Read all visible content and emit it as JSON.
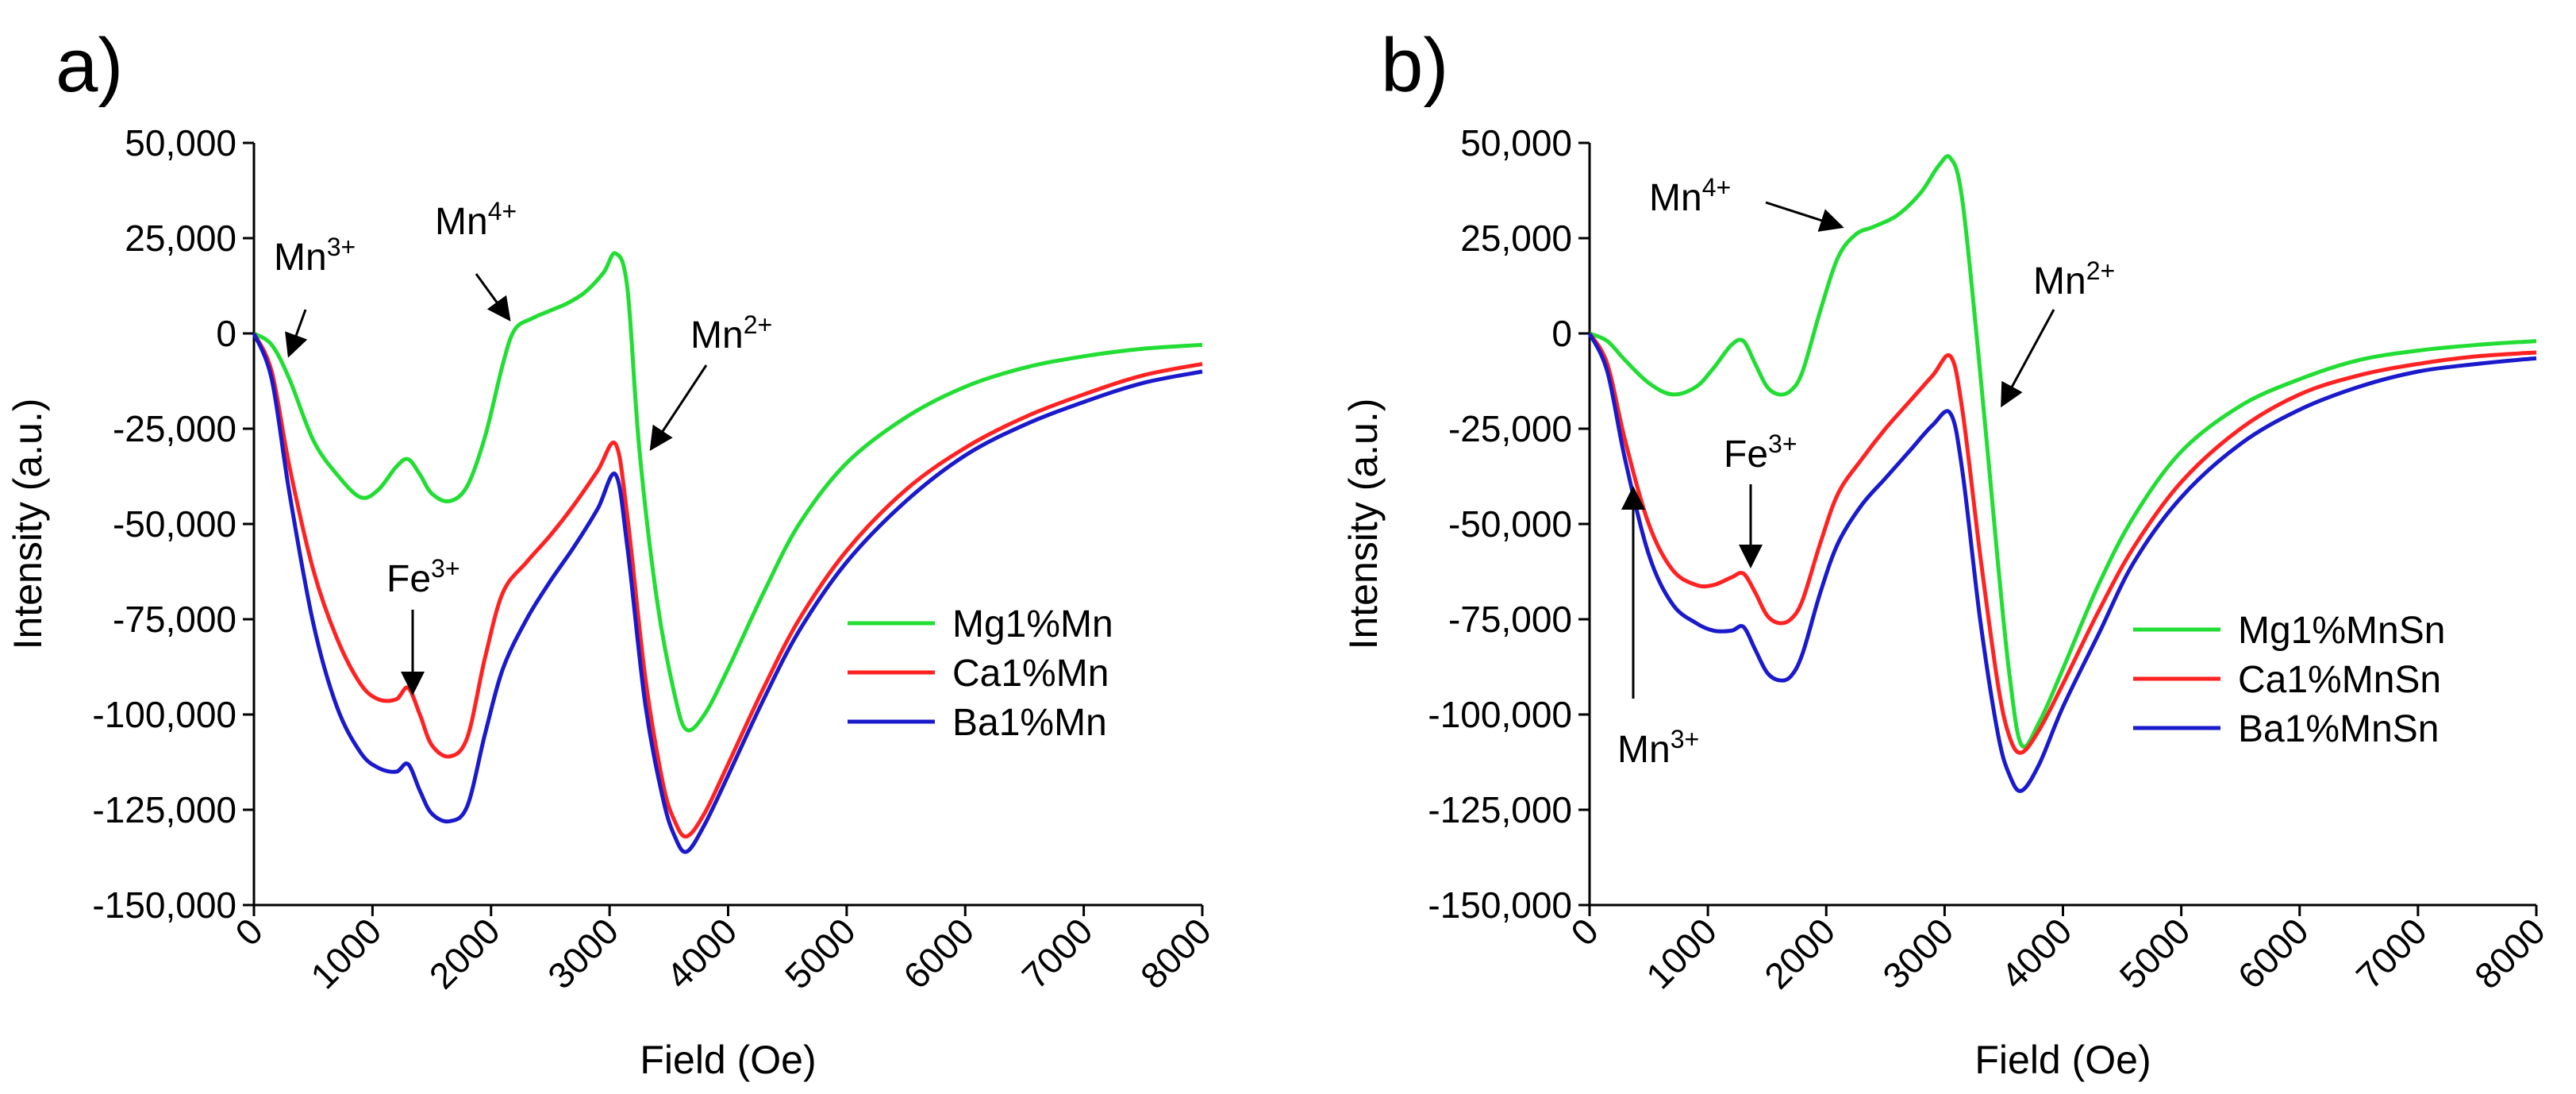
{
  "chart_data": [
    {
      "type": "line",
      "panel_label": "a)",
      "xlabel": "Field (Oe)",
      "ylabel": "Intensity (a.u.)",
      "xlim": [
        0,
        8000
      ],
      "ylim": [
        -150000,
        50000
      ],
      "xticks": [
        "0",
        "1000",
        "2000",
        "3000",
        "4000",
        "5000",
        "6000",
        "7000",
        "8000"
      ],
      "xtick_values": [
        0,
        1000,
        2000,
        3000,
        4000,
        5000,
        6000,
        7000,
        8000
      ],
      "yticks": [
        "50,000",
        "25,000",
        "0",
        "-25,000",
        "-50,000",
        "-75,000",
        "-100,000",
        "-125,000",
        "-150,000"
      ],
      "ytick_values": [
        50000,
        25000,
        0,
        -25000,
        -50000,
        -75000,
        -100000,
        -125000,
        -150000
      ],
      "legend_position": "center-right",
      "series": [
        {
          "name": "Mg1%Mn",
          "color": "#22dd33",
          "x": [
            0,
            150,
            300,
            500,
            700,
            900,
            1050,
            1200,
            1300,
            1400,
            1500,
            1650,
            1800,
            1950,
            2100,
            2200,
            2350,
            2500,
            2650,
            2800,
            2950,
            3050,
            3150,
            3250,
            3400,
            3550,
            3650,
            3800,
            4000,
            4300,
            4600,
            5000,
            5500,
            6000,
            6500,
            7000,
            7500,
            8000
          ],
          "y": [
            0,
            -3000,
            -12000,
            -28000,
            -37000,
            -43000,
            -41000,
            -35000,
            -33000,
            -37000,
            -42000,
            -44000,
            -40000,
            -27000,
            -8000,
            1000,
            4000,
            6000,
            8000,
            11000,
            16000,
            21000,
            12000,
            -30000,
            -70000,
            -95000,
            -104000,
            -100000,
            -88000,
            -68000,
            -50000,
            -34000,
            -22000,
            -14000,
            -9000,
            -6000,
            -4000,
            -3000
          ]
        },
        {
          "name": "Ca1%Mn",
          "color": "#ff2222",
          "x": [
            0,
            150,
            300,
            500,
            700,
            900,
            1050,
            1200,
            1300,
            1400,
            1500,
            1650,
            1800,
            1950,
            2100,
            2300,
            2500,
            2700,
            2900,
            3050,
            3150,
            3300,
            3450,
            3550,
            3650,
            3800,
            4000,
            4300,
            4600,
            5000,
            5500,
            6000,
            6500,
            7000,
            7500,
            8000
          ],
          "y": [
            0,
            -10000,
            -35000,
            -62000,
            -80000,
            -92000,
            -96000,
            -96000,
            -93000,
            -100000,
            -108000,
            -111000,
            -106000,
            -85000,
            -68000,
            -60000,
            -53000,
            -45000,
            -36000,
            -29000,
            -48000,
            -90000,
            -118000,
            -128000,
            -132000,
            -126000,
            -113000,
            -93000,
            -75000,
            -57000,
            -41000,
            -30000,
            -22000,
            -16000,
            -11000,
            -8000
          ]
        },
        {
          "name": "Ba1%Mn",
          "color": "#1a1acc",
          "x": [
            0,
            150,
            300,
            500,
            700,
            900,
            1050,
            1200,
            1300,
            1400,
            1500,
            1650,
            1800,
            1950,
            2100,
            2300,
            2500,
            2700,
            2900,
            3050,
            3150,
            3300,
            3450,
            3550,
            3650,
            3800,
            4000,
            4300,
            4600,
            5000,
            5500,
            6000,
            6500,
            7000,
            7500,
            8000
          ],
          "y": [
            0,
            -12000,
            -42000,
            -76000,
            -98000,
            -110000,
            -114000,
            -115000,
            -113000,
            -120000,
            -126000,
            -128000,
            -124000,
            -105000,
            -88000,
            -75000,
            -65000,
            -56000,
            -46000,
            -37000,
            -56000,
            -97000,
            -122000,
            -132000,
            -136000,
            -129000,
            -116000,
            -96000,
            -78000,
            -60000,
            -44000,
            -32000,
            -24000,
            -18000,
            -13000,
            -10000
          ]
        }
      ],
      "annotations": [
        {
          "base": "Mn",
          "sup": "3+"
        },
        {
          "base": "Mn",
          "sup": "4+"
        },
        {
          "base": "Mn",
          "sup": "2+"
        },
        {
          "base": "Fe",
          "sup": "3+"
        }
      ]
    },
    {
      "type": "line",
      "panel_label": "b)",
      "xlabel": "Field (Oe)",
      "ylabel": "Intensity (a.u.)",
      "xlim": [
        0,
        8000
      ],
      "ylim": [
        -150000,
        50000
      ],
      "xticks": [
        "0",
        "1000",
        "2000",
        "3000",
        "4000",
        "5000",
        "6000",
        "7000",
        "8000"
      ],
      "xtick_values": [
        0,
        1000,
        2000,
        3000,
        4000,
        5000,
        6000,
        7000,
        8000
      ],
      "yticks": [
        "50,000",
        "25,000",
        "0",
        "-25,000",
        "-50,000",
        "-75,000",
        "-100,000",
        "-125,000",
        "-150,000"
      ],
      "ytick_values": [
        50000,
        25000,
        0,
        -25000,
        -50000,
        -75000,
        -100000,
        -125000,
        -150000
      ],
      "legend_position": "center-right",
      "series": [
        {
          "name": "Mg1%MnSn",
          "color": "#22dd33",
          "x": [
            0,
            150,
            300,
            500,
            700,
            900,
            1050,
            1200,
            1300,
            1400,
            1500,
            1600,
            1700,
            1800,
            1950,
            2100,
            2250,
            2400,
            2600,
            2800,
            2950,
            3050,
            3150,
            3300,
            3450,
            3550,
            3650,
            3800,
            4000,
            4300,
            4600,
            5000,
            5500,
            6000,
            6500,
            7000,
            7500,
            8000
          ],
          "y": [
            0,
            -2000,
            -7000,
            -13000,
            -16000,
            -14000,
            -9000,
            -3000,
            -2000,
            -8000,
            -14000,
            -16000,
            -15000,
            -10000,
            6000,
            20000,
            26000,
            28000,
            31000,
            37000,
            44000,
            46000,
            35000,
            -10000,
            -60000,
            -90000,
            -108000,
            -102000,
            -88000,
            -66000,
            -48000,
            -31000,
            -19000,
            -12000,
            -7000,
            -4500,
            -3000,
            -2000
          ]
        },
        {
          "name": "Ca1%MnSn",
          "color": "#ff2222",
          "x": [
            0,
            150,
            300,
            500,
            700,
            900,
            1050,
            1200,
            1300,
            1400,
            1500,
            1600,
            1700,
            1800,
            1950,
            2100,
            2300,
            2500,
            2700,
            2900,
            3050,
            3150,
            3300,
            3450,
            3550,
            3650,
            3800,
            4000,
            4300,
            4600,
            5000,
            5500,
            6000,
            6500,
            7000,
            7500,
            8000
          ],
          "y": [
            0,
            -8000,
            -28000,
            -50000,
            -62000,
            -66000,
            -66000,
            -64000,
            -63000,
            -68000,
            -74000,
            -76000,
            -75000,
            -70000,
            -55000,
            -42000,
            -33000,
            -25000,
            -18000,
            -11000,
            -6000,
            -20000,
            -58000,
            -92000,
            -106000,
            -110000,
            -104000,
            -92000,
            -73000,
            -56000,
            -39000,
            -25000,
            -16000,
            -11000,
            -8000,
            -6000,
            -5000
          ]
        },
        {
          "name": "Ba1%MnSn",
          "color": "#1a1acc",
          "x": [
            0,
            150,
            300,
            500,
            700,
            900,
            1050,
            1200,
            1300,
            1400,
            1500,
            1600,
            1700,
            1800,
            1950,
            2100,
            2300,
            2500,
            2700,
            2900,
            3050,
            3150,
            3300,
            3450,
            3550,
            3650,
            3800,
            4000,
            4300,
            4600,
            5000,
            5500,
            6000,
            6500,
            7000,
            7500,
            8000
          ],
          "y": [
            0,
            -10000,
            -33000,
            -58000,
            -71000,
            -76000,
            -78000,
            -78000,
            -77000,
            -83000,
            -89000,
            -91000,
            -90000,
            -84000,
            -68000,
            -55000,
            -45000,
            -38000,
            -31000,
            -24000,
            -21000,
            -36000,
            -75000,
            -105000,
            -116000,
            -120000,
            -113000,
            -98000,
            -79000,
            -60000,
            -43000,
            -29000,
            -20000,
            -14000,
            -10000,
            -8000,
            -6500
          ]
        }
      ],
      "annotations": [
        {
          "base": "Mn",
          "sup": "4+"
        },
        {
          "base": "Mn",
          "sup": "2+"
        },
        {
          "base": "Fe",
          "sup": "3+"
        },
        {
          "base": "Mn",
          "sup": "3+"
        }
      ]
    }
  ]
}
